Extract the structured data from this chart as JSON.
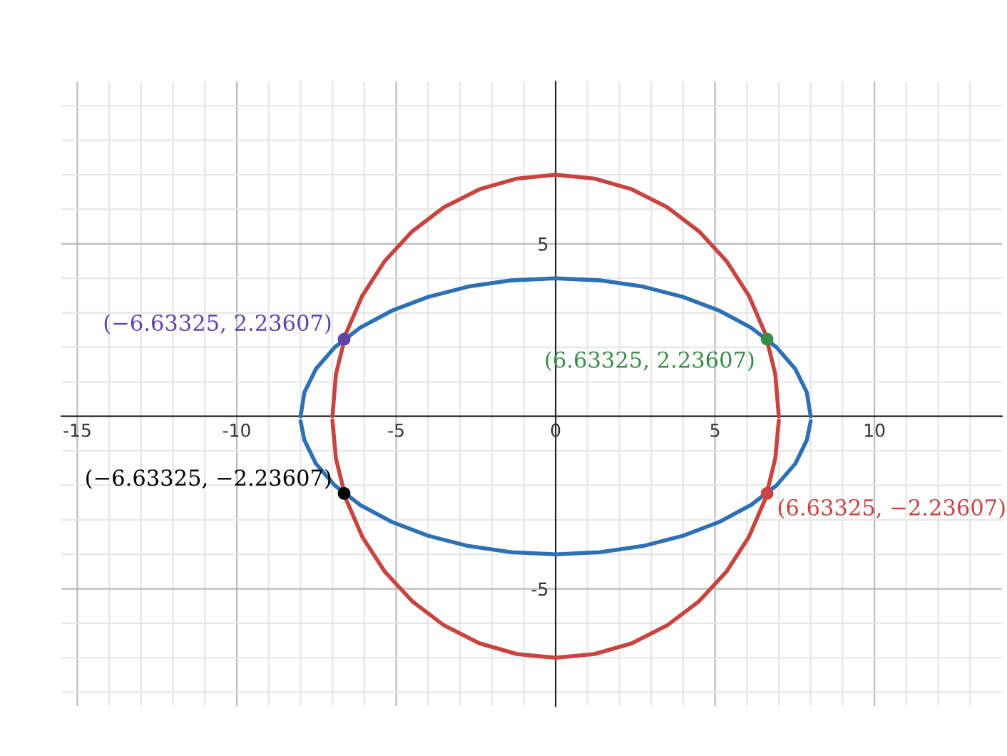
{
  "chart_data": {
    "type": "line",
    "grid": true,
    "legend": false,
    "marker": "none",
    "line_style": "solid",
    "xlim": [
      -15.5,
      14
    ],
    "ylim": [
      -8.4,
      9.7
    ],
    "xticks": [
      {
        "value": -15,
        "label": "-15"
      },
      {
        "value": -14,
        "label": null
      },
      {
        "value": -13,
        "label": null
      },
      {
        "value": -12,
        "label": null
      },
      {
        "value": -11,
        "label": null
      },
      {
        "value": -10,
        "label": "-10"
      },
      {
        "value": -9,
        "label": null
      },
      {
        "value": -8,
        "label": null
      },
      {
        "value": -7,
        "label": null
      },
      {
        "value": -6,
        "label": null
      },
      {
        "value": -5,
        "label": "-5"
      },
      {
        "value": -4,
        "label": null
      },
      {
        "value": -3,
        "label": null
      },
      {
        "value": -2,
        "label": null
      },
      {
        "value": -1,
        "label": null
      },
      0,
      {
        "value": 1,
        "label": null
      },
      {
        "value": 2,
        "label": null
      },
      {
        "value": 3,
        "label": null
      },
      {
        "value": 4,
        "label": null
      },
      5,
      {
        "value": 6,
        "label": null
      },
      {
        "value": 7,
        "label": null
      },
      {
        "value": 8,
        "label": null
      },
      {
        "value": 9,
        "label": null
      },
      10,
      {
        "value": 11,
        "label": null
      },
      {
        "value": 12,
        "label": null
      },
      {
        "value": 13,
        "label": null
      }
    ],
    "yticks": [
      {
        "value": -8,
        "label": null
      },
      {
        "value": -7,
        "label": null
      },
      {
        "value": -6,
        "label": null
      },
      {
        "value": -5,
        "label": "-5"
      },
      {
        "value": -4,
        "label": null
      },
      {
        "value": -3,
        "label": null
      },
      {
        "value": -2,
        "label": null
      },
      {
        "value": -1,
        "label": null
      },
      {
        "value": 0,
        "label": null
      },
      {
        "value": 1,
        "label": null
      },
      {
        "value": 2,
        "label": null
      },
      {
        "value": 3,
        "label": null
      },
      {
        "value": 4,
        "label": null
      },
      5,
      {
        "value": 6,
        "label": null
      },
      {
        "value": 7,
        "label": null
      },
      {
        "value": 8,
        "label": null
      },
      {
        "value": 9,
        "label": null
      }
    ],
    "series": [
      {
        "color": "#c74440",
        "x": [
          -7,
          -6.89,
          -6.58,
          -6.06,
          -5.36,
          -4.5,
          -3.5,
          -2.39,
          -1.22,
          0,
          1.22,
          2.39,
          3.5,
          4.5,
          5.36,
          6.06,
          6.58,
          6.89,
          7
        ],
        "values": [
          0,
          1.22,
          2.39,
          3.5,
          4.5,
          5.36,
          6.06,
          6.58,
          6.89,
          7,
          6.89,
          6.58,
          6.06,
          5.36,
          4.5,
          3.5,
          2.39,
          1.22,
          0
        ]
      },
      {
        "color": "#c74440",
        "x": [
          -7,
          -6.89,
          -6.58,
          -6.06,
          -5.36,
          -4.5,
          -3.5,
          -2.39,
          -1.22,
          0,
          1.22,
          2.39,
          3.5,
          4.5,
          5.36,
          6.06,
          6.58,
          6.89,
          7
        ],
        "values": [
          -0.12,
          -1.22,
          -2.39,
          -3.5,
          -4.5,
          -5.36,
          -6.06,
          -6.58,
          -6.89,
          -7,
          -6.89,
          -6.58,
          -6.06,
          -5.36,
          -4.5,
          -3.5,
          -2.39,
          -1.22,
          -0.12
        ]
      },
      {
        "color": "#2d70b3",
        "x": [
          -8,
          -7.88,
          -7.52,
          -6.93,
          -6.13,
          -5.14,
          -4,
          -2.74,
          -1.39,
          0,
          1.39,
          2.74,
          4,
          5.14,
          6.13,
          6.93,
          7.52,
          7.88,
          8
        ],
        "values": [
          0,
          0.69,
          1.37,
          2,
          2.57,
          3.06,
          3.46,
          3.76,
          3.94,
          4,
          3.94,
          3.76,
          3.46,
          3.06,
          2.57,
          2,
          1.37,
          0.69,
          0
        ]
      },
      {
        "color": "#2d70b3",
        "x": [
          -8,
          -7.88,
          -7.52,
          -6.93,
          -6.13,
          -5.14,
          -4,
          -2.74,
          -1.39,
          0,
          1.39,
          2.74,
          4,
          5.14,
          6.13,
          6.93,
          7.52,
          7.88,
          8
        ],
        "values": [
          -0.14,
          -0.69,
          -1.37,
          -2,
          -2.57,
          -3.06,
          -3.46,
          -3.76,
          -3.94,
          -4,
          -3.94,
          -3.76,
          -3.46,
          -3.06,
          -2.57,
          -2,
          -1.37,
          -0.69,
          -0.14
        ]
      },
      {
        "type": "scatter",
        "marker": "circle",
        "color": "#6042a6",
        "x": [
          -6.63325
        ],
        "values": [
          2.23607
        ],
        "value_labels": [
          "(−6.63325, 2.23607)"
        ]
      },
      {
        "type": "scatter",
        "marker": "circle",
        "color": "#388c46",
        "x": [
          6.63325
        ],
        "values": [
          2.23607
        ],
        "value_labels": [
          "(6.63325, 2.23607)"
        ]
      },
      {
        "type": "scatter",
        "marker": "circle",
        "color": "#000000",
        "x": [
          -6.63325
        ],
        "values": [
          -2.23607
        ],
        "value_labels": [
          "(−6.63325, −2.23607)"
        ]
      },
      {
        "type": "scatter",
        "marker": "circle",
        "color": "#c74440",
        "x": [
          6.63325
        ],
        "values": [
          -2.23607
        ],
        "value_labels": [
          "(6.63325, −2.23607)"
        ]
      }
    ]
  }
}
